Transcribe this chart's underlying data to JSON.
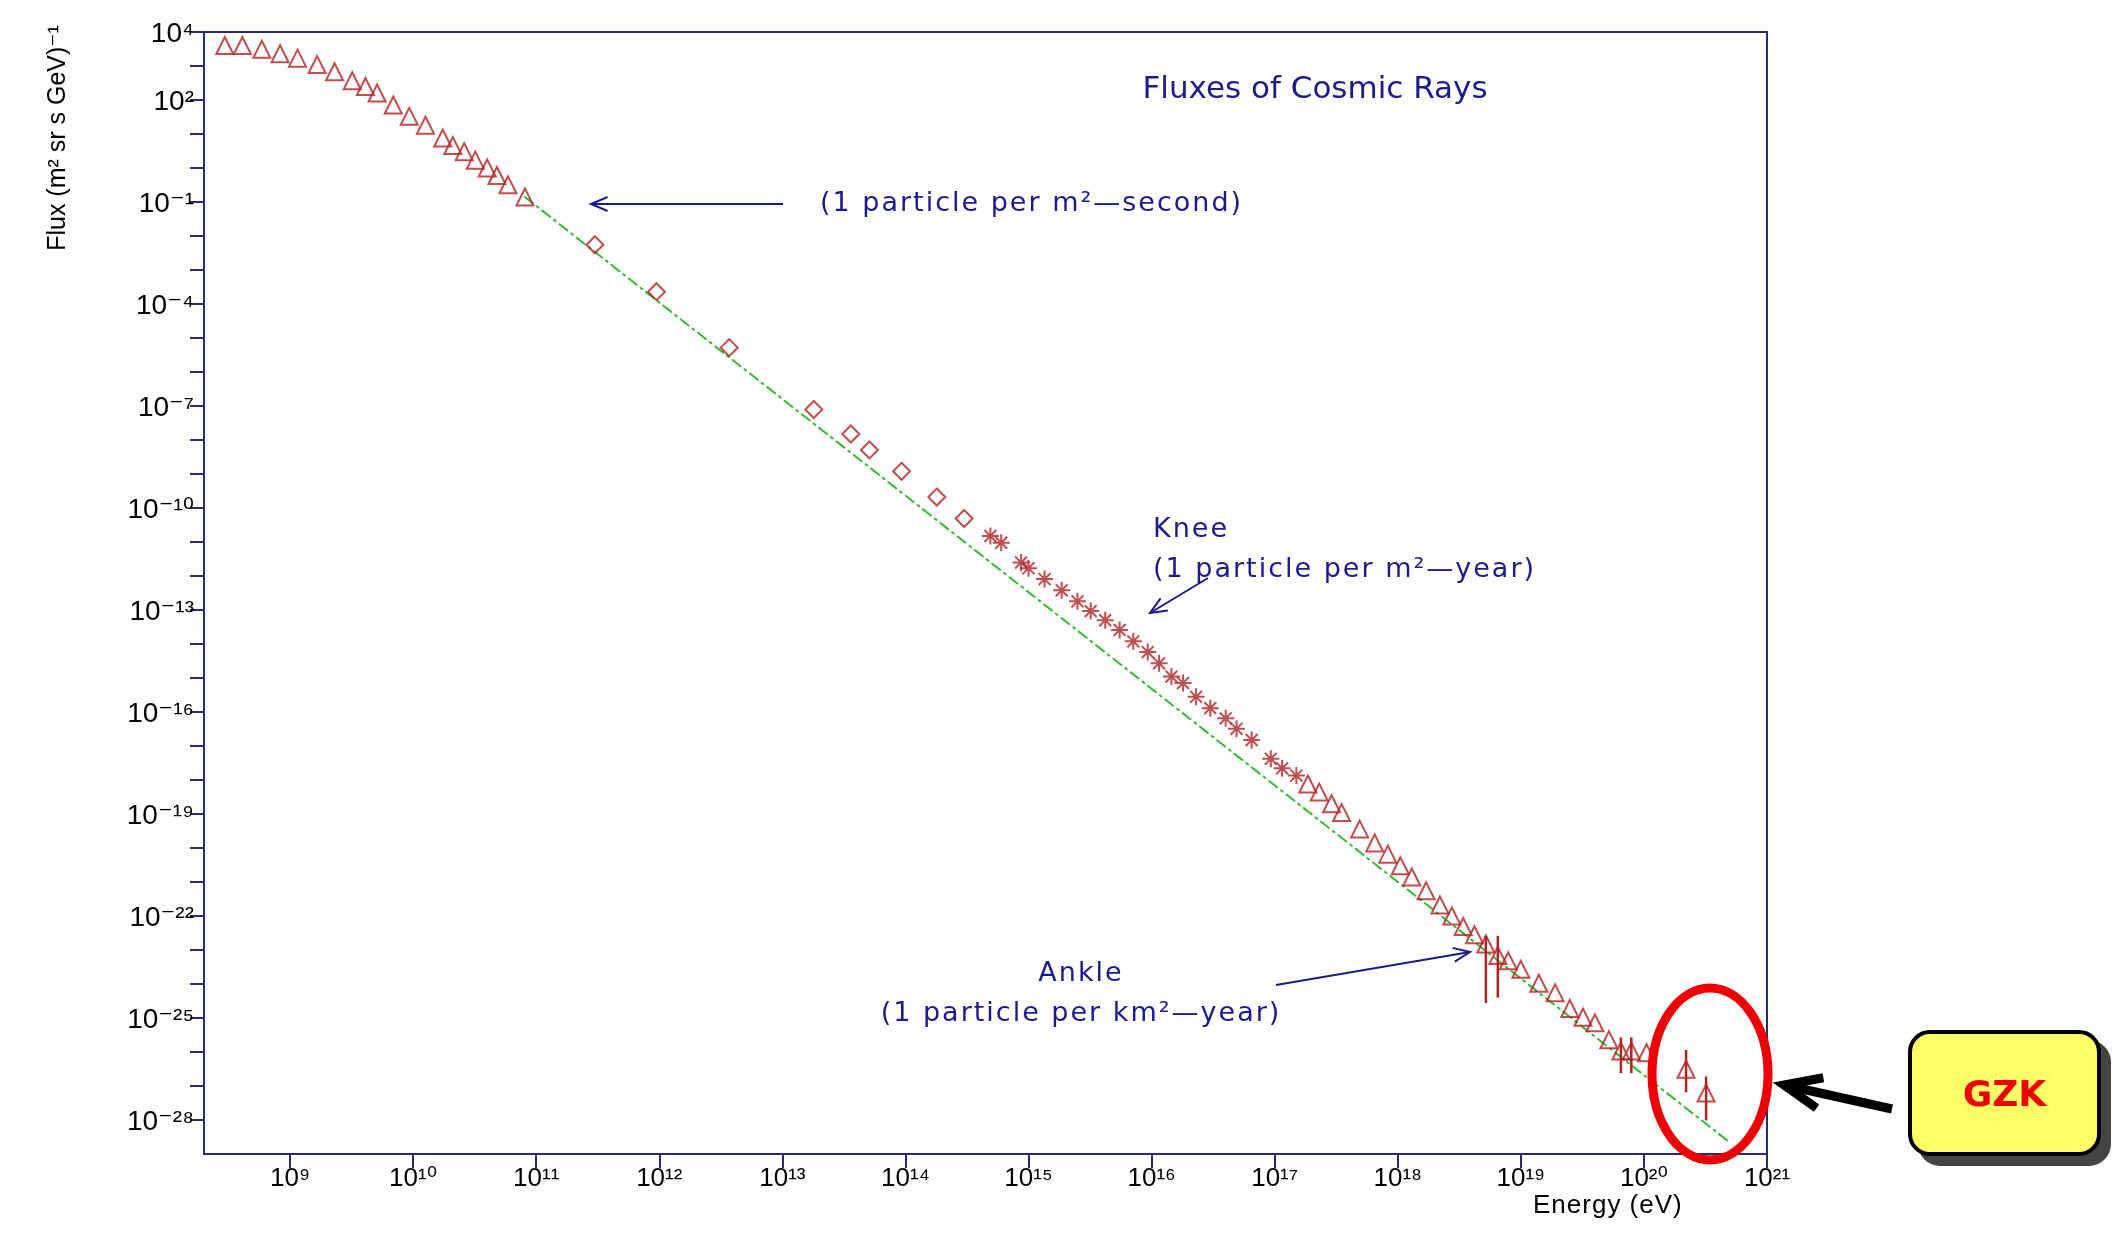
{
  "chart_data": {
    "type": "scatter",
    "title": "Fluxes of Cosmic Rays",
    "xlabel": "Energy (eV)",
    "ylabel": "Flux (m² sr s GeV)⁻¹",
    "log": "xy",
    "xlim": [
      200000000.0,
      1e+21
    ],
    "ylim": [
      1e-29,
      10000.0
    ],
    "xticks": [
      {
        "value": 1000000000.0,
        "label": "10⁹"
      },
      {
        "value": 10000000000.0,
        "label": "10¹⁰"
      },
      {
        "value": 100000000000.0,
        "label": "10¹¹"
      },
      {
        "value": 1000000000000.0,
        "label": "10¹²"
      },
      {
        "value": 10000000000000.0,
        "label": "10¹³"
      },
      {
        "value": 100000000000000.0,
        "label": "10¹⁴"
      },
      {
        "value": 1000000000000000.0,
        "label": "10¹⁵"
      },
      {
        "value": 1e+16,
        "label": "10¹⁶"
      },
      {
        "value": 1e+17,
        "label": "10¹⁷"
      },
      {
        "value": 1e+18,
        "label": "10¹⁸"
      },
      {
        "value": 1e+19,
        "label": "10¹⁹"
      },
      {
        "value": 1e+20,
        "label": "10²⁰"
      },
      {
        "value": 1e+21,
        "label": "10²¹"
      }
    ],
    "yticks": [
      {
        "value": 10000.0,
        "label": "10⁴"
      },
      {
        "value": 1000.0,
        "label": null
      },
      {
        "value": 100.0,
        "label": "10²"
      },
      {
        "value": 10.0,
        "label": null
      },
      {
        "value": 1,
        "label": null
      },
      {
        "value": 0.1,
        "label": "10⁻¹"
      },
      {
        "value": 0.01,
        "label": null
      },
      {
        "value": 0.001,
        "label": null
      },
      {
        "value": 0.0001,
        "label": "10⁻⁴"
      },
      {
        "value": 1e-05,
        "label": null
      },
      {
        "value": 1e-06,
        "label": null
      },
      {
        "value": 1e-07,
        "label": "10⁻⁷"
      },
      {
        "value": 1e-08,
        "label": null
      },
      {
        "value": 1e-09,
        "label": null
      },
      {
        "value": 1e-10,
        "label": "10⁻¹⁰"
      },
      {
        "value": 1e-11,
        "label": null
      },
      {
        "value": 1e-12,
        "label": null
      },
      {
        "value": 1e-13,
        "label": "10⁻¹³"
      },
      {
        "value": 1e-14,
        "label": null
      },
      {
        "value": 1e-15,
        "label": null
      },
      {
        "value": 1e-16,
        "label": "10⁻¹⁶"
      },
      {
        "value": 1e-17,
        "label": null
      },
      {
        "value": 1e-18,
        "label": null
      },
      {
        "value": 1e-19,
        "label": "10⁻¹⁹"
      },
      {
        "value": 1e-20,
        "label": null
      },
      {
        "value": 1e-21,
        "label": null
      },
      {
        "value": 1e-22,
        "label": "10⁻²²"
      },
      {
        "value": 1e-23,
        "label": null
      },
      {
        "value": 1e-24,
        "label": null
      },
      {
        "value": 1e-25,
        "label": "10⁻²⁵"
      },
      {
        "value": 1e-26,
        "label": null
      },
      {
        "value": 1e-27,
        "label": null
      },
      {
        "value": 1e-28,
        "label": "10⁻²⁸"
      }
    ],
    "series": [
      {
        "type": "line",
        "color": "#33bb33",
        "line_style": "dashed",
        "marker": "none",
        "x": [
          81000000000.0,
          4.9e+20
        ],
        "values": [
          0.14,
          2.3e-29
        ]
      },
      {
        "color": "#b22222",
        "marker": "triangle",
        "x": [
          295000000.0,
          410000000.0,
          590000000.0,
          830000000.0,
          1150000000.0,
          1660000000.0,
          2300000000.0,
          3200000000.0,
          4100000000.0,
          5100000000.0,
          6900000000.0,
          9300000000.0,
          12600000000.0,
          17400000000.0,
          21000000000.0,
          26000000000.0,
          32000000000.0,
          40000000000.0,
          48000000000.0,
          59000000000.0,
          81000000000.0
        ],
        "values": [
          4000.0,
          4000.0,
          3100.0,
          2300.0,
          1700.0,
          1100.0,
          680,
          370,
          250,
          160,
          71,
          33,
          18,
          7.6,
          4.6,
          3.0,
          1.7,
          1.0,
          0.6,
          0.32,
          0.14
        ]
      },
      {
        "color": "#b22222",
        "marker": "diamond",
        "x": [
          300000000000.0,
          950000000000.0,
          3700000000000.0,
          18000000000000.0,
          36000000000000.0,
          51000000000000.0,
          93000000000000.0,
          180000000000000.0,
          300000000000000.0
        ],
        "values": [
          0.0055,
          0.00023,
          5.2e-06,
          7.9e-08,
          1.5e-08,
          5.1e-09,
          1.2e-09,
          2.1e-10,
          4.9e-11
        ]
      },
      {
        "color": "#b22222",
        "marker": "cross",
        "x": [
          490000000000000.0,
          600000000000000.0,
          870000000000000.0,
          1000000000000000.0,
          1350000000000000.0,
          1860000000000000.0,
          2500000000000000.0,
          3200000000000000.0,
          4200000000000000.0,
          5500000000000000.0,
          7100000000000000.0,
          9300000000000000.0,
          1.15e+16,
          1.45e+16,
          1.8e+16,
          2.3e+16,
          3e+16,
          4e+16,
          4.9e+16,
          6.5e+16,
          9.3e+16,
          1.15e+17,
          1.5e+17
        ],
        "values": [
          1.5e-11,
          9.5e-12,
          2.5e-12,
          1.7e-12,
          8.1e-13,
          3.8e-13,
          1.8e-13,
          9.3e-14,
          5e-14,
          2.6e-14,
          1.2e-14,
          5.8e-15,
          2.7e-15,
          1.1e-15,
          7.1e-16,
          2.8e-16,
          1.3e-16,
          6.5e-17,
          3.2e-17,
          1.5e-17,
          4.2e-18,
          2.2e-18,
          1.35e-18
        ]
      },
      {
        "color": "#b22222",
        "marker": "triangle",
        "x": [
          1.86e+17,
          2.3e+17,
          2.9e+17,
          3.5e+17,
          4.9e+17,
          6.5e+17,
          8.3e+17,
          1.05e+18,
          1.3e+18,
          1.7e+18,
          2.2e+18,
          2.75e+18,
          3.4e+18,
          4.2e+18,
          5.2e+18,
          6.5e+18,
          7.9e+18,
          1e+19,
          1.4e+19,
          1.9e+19,
          2.5e+19,
          3.2e+19,
          4e+19,
          5.2e+19,
          6.5e+19,
          7.9e+19,
          1.05e+20,
          2.2e+20,
          3.2e+20
        ],
        "values": [
          7.6e-19,
          4.4e-19,
          2e-19,
          1.1e-19,
          3.6e-20,
          1.4e-20,
          6.6e-21,
          3e-21,
          1.4e-21,
          5.5e-22,
          2.1e-22,
          1e-22,
          4.9e-23,
          2.8e-23,
          1.5e-23,
          6.9e-24,
          4.8e-24,
          2.7e-24,
          1.05e-24,
          5.5e-25,
          1.9e-25,
          1.05e-25,
          7.2e-26,
          2.3e-26,
          1.07e-26,
          1.07e-26,
          9.5e-27,
          3.1e-27,
          6.2e-28
        ],
        "errors": [
          null,
          null,
          null,
          null,
          null,
          null,
          null,
          null,
          null,
          null,
          null,
          null,
          null,
          null,
          [
            2.75e-25,
            2.6e-23
          ],
          [
            4e-25,
            2.6e-23
          ],
          null,
          null,
          null,
          null,
          null,
          null,
          null,
          null,
          [
            2.4e-27,
            2.7e-26
          ],
          [
            2.4e-27,
            2.7e-26
          ],
          null,
          [
            6.5e-28,
            1.15e-26
          ],
          [
            9.8e-29,
            1.9e-27
          ]
        ]
      }
    ],
    "annotations": [
      "(1 particle per m²—second)",
      "Knee\n(1 particle per m²—year)",
      "Ankle\n(1 particle per km²—year)",
      "GZK"
    ]
  }
}
